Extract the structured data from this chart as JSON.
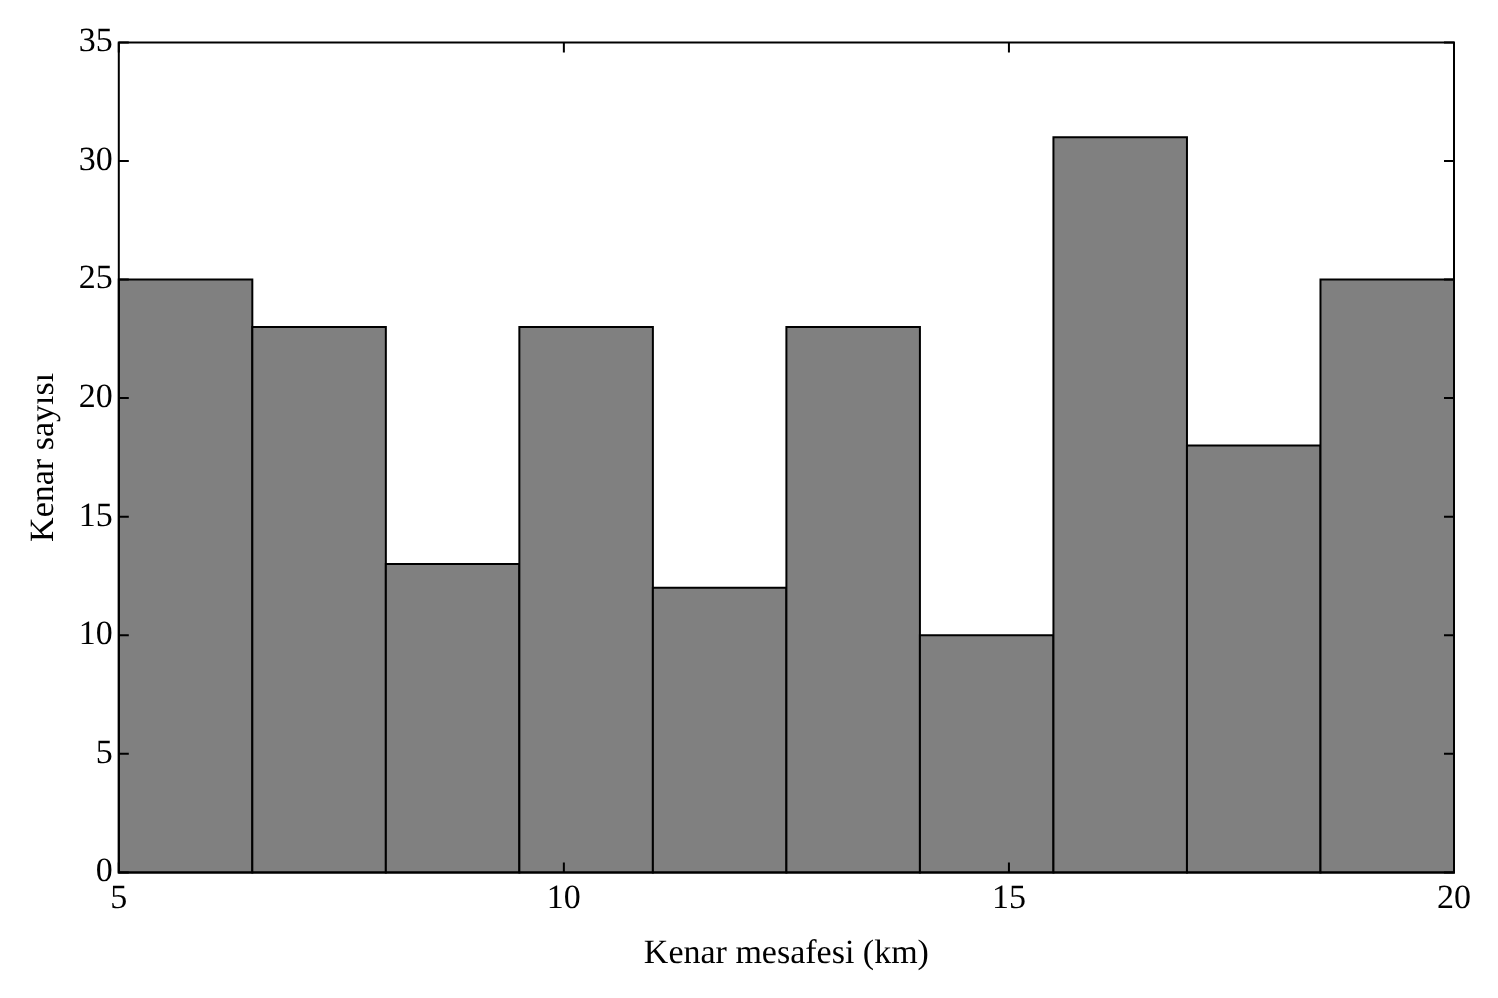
{
  "chart_data": {
    "type": "histogram",
    "xlabel": "Kenar mesafesi (km)",
    "ylabel": "Kenar sayısı",
    "bins": [
      5,
      6.5,
      8,
      9.5,
      11,
      12.5,
      14,
      15.5,
      17,
      18.5,
      20
    ],
    "values": [
      25,
      23,
      13,
      23,
      12,
      23,
      10,
      31,
      18,
      25
    ],
    "color": "#808080",
    "xlim": [
      5,
      20
    ],
    "xticks": [
      5,
      10,
      15,
      20
    ],
    "ylim": [
      0,
      35
    ],
    "yticks": [
      0,
      5,
      10,
      15,
      20,
      25,
      30,
      35
    ],
    "grid": false,
    "legend": false
  }
}
